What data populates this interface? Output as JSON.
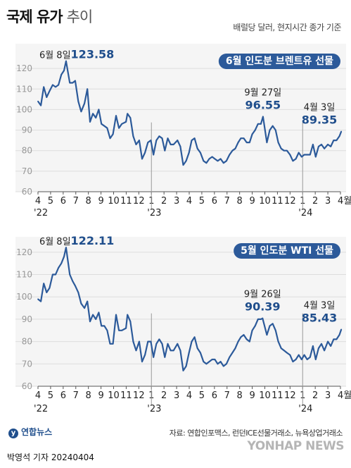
{
  "header": {
    "title": "국제 유가",
    "subtitle": "추이",
    "unit_note": "배럴당 달러, 현지시간 종가 기준"
  },
  "footer": {
    "logo": "연합뉴스",
    "source": "자료: 연합인포맥스, 런던ICE선물거래소, 뉴욕상업거래소",
    "watermark": "YONHAP NEWS",
    "byline": "박영석 기자 20240404"
  },
  "colors": {
    "line": "#2c5a9a",
    "accent": "#1f4e8c",
    "badge_bg": "#2c5a9a",
    "badge_text": "#ffffff",
    "grid": "#dddddd",
    "panel_bg": "#f5f5f5",
    "axis_text": "#999999"
  },
  "chart_data": [
    {
      "type": "line",
      "title": "6월 인도분 브렌트유 선물",
      "ylim": [
        60,
        130
      ],
      "yticks": [
        60,
        70,
        80,
        90,
        100,
        110,
        120
      ],
      "x_start": "2022-04",
      "x_end": "2024-04",
      "x_ticks": [
        "4",
        "5",
        "6",
        "7",
        "8",
        "9",
        "10",
        "11",
        "12",
        "1",
        "2",
        "3",
        "4",
        "5",
        "6",
        "7",
        "8",
        "9",
        "10",
        "11",
        "12",
        "1",
        "2",
        "3",
        "4월"
      ],
      "year_labels": [
        {
          "label": "'22",
          "at": "2022-04"
        },
        {
          "label": "'23",
          "at": "2023-01"
        },
        {
          "label": "'24",
          "at": "2024-01"
        }
      ],
      "grid": true,
      "series": [
        {
          "values": [
            [
              "2022-04-01",
              104
            ],
            [
              "2022-04-08",
              102
            ],
            [
              "2022-04-15",
              111
            ],
            [
              "2022-04-22",
              106
            ],
            [
              "2022-04-29",
              109
            ],
            [
              "2022-05-06",
              112
            ],
            [
              "2022-05-13",
              111
            ],
            [
              "2022-05-20",
              112
            ],
            [
              "2022-05-27",
              117
            ],
            [
              "2022-06-03",
              119
            ],
            [
              "2022-06-08",
              123.58
            ],
            [
              "2022-06-17",
              113
            ],
            [
              "2022-06-24",
              113
            ],
            [
              "2022-06-30",
              114
            ],
            [
              "2022-07-07",
              104
            ],
            [
              "2022-07-14",
              99
            ],
            [
              "2022-07-22",
              103
            ],
            [
              "2022-07-29",
              110
            ],
            [
              "2022-08-05",
              94
            ],
            [
              "2022-08-12",
              98
            ],
            [
              "2022-08-19",
              96
            ],
            [
              "2022-08-26",
              100
            ],
            [
              "2022-09-02",
              93
            ],
            [
              "2022-09-09",
              92
            ],
            [
              "2022-09-16",
              91
            ],
            [
              "2022-09-23",
              86
            ],
            [
              "2022-09-30",
              88
            ],
            [
              "2022-10-07",
              97
            ],
            [
              "2022-10-14",
              91
            ],
            [
              "2022-10-21",
              93
            ],
            [
              "2022-10-31",
              94
            ],
            [
              "2022-11-04",
              98
            ],
            [
              "2022-11-11",
              96
            ],
            [
              "2022-11-18",
              87
            ],
            [
              "2022-11-25",
              83
            ],
            [
              "2022-12-02",
              85
            ],
            [
              "2022-12-09",
              76
            ],
            [
              "2022-12-16",
              79
            ],
            [
              "2022-12-23",
              84
            ],
            [
              "2022-12-30",
              85
            ],
            [
              "2023-01-06",
              78
            ],
            [
              "2023-01-13",
              85
            ],
            [
              "2023-01-20",
              87
            ],
            [
              "2023-01-27",
              86
            ],
            [
              "2023-02-03",
              80
            ],
            [
              "2023-02-10",
              86
            ],
            [
              "2023-02-17",
              83
            ],
            [
              "2023-02-24",
              83
            ],
            [
              "2023-03-03",
              85
            ],
            [
              "2023-03-10",
              82
            ],
            [
              "2023-03-17",
              73
            ],
            [
              "2023-03-24",
              75
            ],
            [
              "2023-03-31",
              79
            ],
            [
              "2023-04-07",
              85
            ],
            [
              "2023-04-14",
              86
            ],
            [
              "2023-04-21",
              81
            ],
            [
              "2023-04-28",
              79
            ],
            [
              "2023-05-05",
              75
            ],
            [
              "2023-05-12",
              74
            ],
            [
              "2023-05-19",
              76
            ],
            [
              "2023-05-26",
              77
            ],
            [
              "2023-06-02",
              76
            ],
            [
              "2023-06-09",
              75
            ],
            [
              "2023-06-16",
              76
            ],
            [
              "2023-06-23",
              74
            ],
            [
              "2023-06-30",
              75
            ],
            [
              "2023-07-07",
              78
            ],
            [
              "2023-07-14",
              80
            ],
            [
              "2023-07-21",
              81
            ],
            [
              "2023-07-28",
              84
            ],
            [
              "2023-08-04",
              86
            ],
            [
              "2023-08-11",
              86
            ],
            [
              "2023-08-18",
              84
            ],
            [
              "2023-08-25",
              84
            ],
            [
              "2023-09-01",
              88
            ],
            [
              "2023-09-08",
              90
            ],
            [
              "2023-09-15",
              93
            ],
            [
              "2023-09-22",
              93
            ],
            [
              "2023-09-27",
              96.55
            ],
            [
              "2023-10-06",
              84
            ],
            [
              "2023-10-13",
              90
            ],
            [
              "2023-10-20",
              92
            ],
            [
              "2023-10-27",
              90
            ],
            [
              "2023-11-03",
              84
            ],
            [
              "2023-11-10",
              81
            ],
            [
              "2023-11-17",
              80
            ],
            [
              "2023-11-24",
              80
            ],
            [
              "2023-12-01",
              78
            ],
            [
              "2023-12-08",
              75
            ],
            [
              "2023-12-15",
              76
            ],
            [
              "2023-12-22",
              79
            ],
            [
              "2023-12-29",
              77
            ],
            [
              "2024-01-05",
              78
            ],
            [
              "2024-01-12",
              78
            ],
            [
              "2024-01-19",
              78
            ],
            [
              "2024-01-26",
              83
            ],
            [
              "2024-02-02",
              77
            ],
            [
              "2024-02-09",
              82
            ],
            [
              "2024-02-16",
              83
            ],
            [
              "2024-02-23",
              81
            ],
            [
              "2024-03-01",
              83
            ],
            [
              "2024-03-08",
              82
            ],
            [
              "2024-03-15",
              85
            ],
            [
              "2024-03-22",
              85
            ],
            [
              "2024-03-29",
              87
            ],
            [
              "2024-04-03",
              89.35
            ]
          ]
        }
      ],
      "annotations": [
        {
          "date": "6월 8일",
          "value": "123.58",
          "at": "2022-06-08",
          "y": 123.58
        },
        {
          "date": "9월 27일",
          "value": "96.55",
          "at": "2023-09-27",
          "y": 96.55
        },
        {
          "date": "4월 3일",
          "value": "89.35",
          "at": "2024-04-03",
          "y": 89.35
        }
      ]
    },
    {
      "type": "line",
      "title": "5월 인도분 WTI 선물",
      "ylim": [
        60,
        125
      ],
      "yticks": [
        60,
        70,
        80,
        90,
        100,
        110,
        120
      ],
      "x_start": "2022-04",
      "x_end": "2024-04",
      "x_ticks": [
        "4",
        "5",
        "6",
        "7",
        "8",
        "9",
        "10",
        "11",
        "12",
        "1",
        "2",
        "3",
        "4",
        "5",
        "6",
        "7",
        "8",
        "9",
        "10",
        "11",
        "12",
        "1",
        "2",
        "3",
        "4월"
      ],
      "year_labels": [
        {
          "label": "'22",
          "at": "2022-04"
        },
        {
          "label": "'23",
          "at": "2023-01"
        },
        {
          "label": "'24",
          "at": "2024-01"
        }
      ],
      "grid": true,
      "series": [
        {
          "values": [
            [
              "2022-04-01",
              99
            ],
            [
              "2022-04-08",
              98
            ],
            [
              "2022-04-15",
              106
            ],
            [
              "2022-04-22",
              102
            ],
            [
              "2022-04-29",
              104
            ],
            [
              "2022-05-06",
              110
            ],
            [
              "2022-05-13",
              110
            ],
            [
              "2022-05-20",
              113
            ],
            [
              "2022-05-27",
              115
            ],
            [
              "2022-06-03",
              118
            ],
            [
              "2022-06-08",
              122.11
            ],
            [
              "2022-06-17",
              110
            ],
            [
              "2022-06-24",
              107
            ],
            [
              "2022-06-30",
              105
            ],
            [
              "2022-07-07",
              102
            ],
            [
              "2022-07-14",
              97
            ],
            [
              "2022-07-22",
              95
            ],
            [
              "2022-07-29",
              98
            ],
            [
              "2022-08-05",
              89
            ],
            [
              "2022-08-12",
              92
            ],
            [
              "2022-08-19",
              90
            ],
            [
              "2022-08-26",
              93
            ],
            [
              "2022-09-02",
              87
            ],
            [
              "2022-09-09",
              87
            ],
            [
              "2022-09-16",
              85
            ],
            [
              "2022-09-23",
              79
            ],
            [
              "2022-09-30",
              79
            ],
            [
              "2022-10-07",
              92
            ],
            [
              "2022-10-14",
              85
            ],
            [
              "2022-10-21",
              85
            ],
            [
              "2022-10-31",
              86
            ],
            [
              "2022-11-04",
              92
            ],
            [
              "2022-11-11",
              89
            ],
            [
              "2022-11-18",
              80
            ],
            [
              "2022-11-25",
              76
            ],
            [
              "2022-12-02",
              80
            ],
            [
              "2022-12-09",
              71
            ],
            [
              "2022-12-16",
              74
            ],
            [
              "2022-12-23",
              80
            ],
            [
              "2022-12-30",
              80
            ],
            [
              "2023-01-06",
              73
            ],
            [
              "2023-01-13",
              79
            ],
            [
              "2023-01-20",
              81
            ],
            [
              "2023-01-27",
              79
            ],
            [
              "2023-02-03",
              73
            ],
            [
              "2023-02-10",
              79
            ],
            [
              "2023-02-17",
              76
            ],
            [
              "2023-02-24",
              76
            ],
            [
              "2023-03-03",
              79
            ],
            [
              "2023-03-10",
              76
            ],
            [
              "2023-03-17",
              67
            ],
            [
              "2023-03-24",
              69
            ],
            [
              "2023-03-31",
              75
            ],
            [
              "2023-04-07",
              80
            ],
            [
              "2023-04-14",
              82
            ],
            [
              "2023-04-21",
              77
            ],
            [
              "2023-04-28",
              75
            ],
            [
              "2023-05-05",
              71
            ],
            [
              "2023-05-12",
              70
            ],
            [
              "2023-05-19",
              71
            ],
            [
              "2023-05-26",
              72
            ],
            [
              "2023-06-02",
              72
            ],
            [
              "2023-06-09",
              70
            ],
            [
              "2023-06-16",
              71
            ],
            [
              "2023-06-23",
              69
            ],
            [
              "2023-06-30",
              70
            ],
            [
              "2023-07-07",
              73
            ],
            [
              "2023-07-14",
              75
            ],
            [
              "2023-07-21",
              77
            ],
            [
              "2023-07-28",
              80
            ],
            [
              "2023-08-04",
              82
            ],
            [
              "2023-08-11",
              83
            ],
            [
              "2023-08-18",
              81
            ],
            [
              "2023-08-25",
              80
            ],
            [
              "2023-09-01",
              85
            ],
            [
              "2023-09-08",
              87
            ],
            [
              "2023-09-15",
              90
            ],
            [
              "2023-09-22",
              90
            ],
            [
              "2023-09-26",
              90.39
            ],
            [
              "2023-10-06",
              83
            ],
            [
              "2023-10-13",
              87
            ],
            [
              "2023-10-20",
              88
            ],
            [
              "2023-10-27",
              85
            ],
            [
              "2023-11-03",
              80
            ],
            [
              "2023-11-10",
              77
            ],
            [
              "2023-11-17",
              76
            ],
            [
              "2023-11-24",
              75
            ],
            [
              "2023-12-01",
              74
            ],
            [
              "2023-12-08",
              71
            ],
            [
              "2023-12-15",
              72
            ],
            [
              "2023-12-22",
              74
            ],
            [
              "2023-12-29",
              72
            ],
            [
              "2024-01-05",
              74
            ],
            [
              "2024-01-12",
              72
            ],
            [
              "2024-01-19",
              73
            ],
            [
              "2024-01-26",
              78
            ],
            [
              "2024-02-02",
              72
            ],
            [
              "2024-02-09",
              77
            ],
            [
              "2024-02-16",
              79
            ],
            [
              "2024-02-23",
              76
            ],
            [
              "2024-03-01",
              80
            ],
            [
              "2024-03-08",
              78
            ],
            [
              "2024-03-15",
              81
            ],
            [
              "2024-03-22",
              81
            ],
            [
              "2024-03-29",
              83
            ],
            [
              "2024-04-03",
              85.43
            ]
          ]
        }
      ],
      "annotations": [
        {
          "date": "6월 8일",
          "value": "122.11",
          "at": "2022-06-08",
          "y": 122.11
        },
        {
          "date": "9월 26일",
          "value": "90.39",
          "at": "2023-09-26",
          "y": 90.39
        },
        {
          "date": "4월 3일",
          "value": "85.43",
          "at": "2024-04-03",
          "y": 85.43
        }
      ]
    }
  ]
}
